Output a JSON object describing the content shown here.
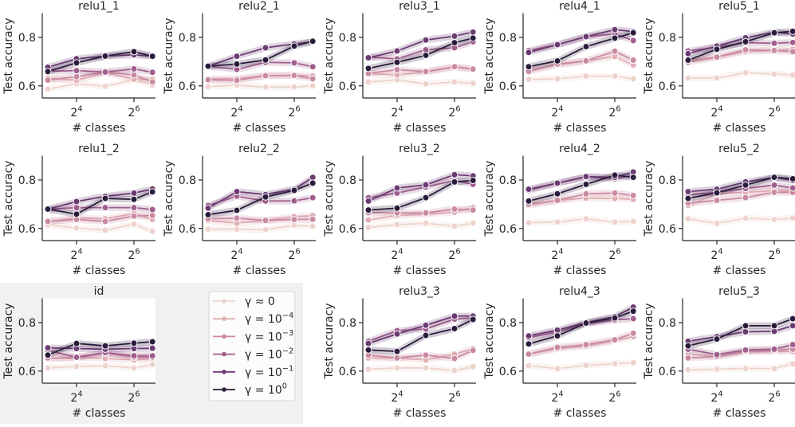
{
  "chart_data": {
    "type": "line",
    "x": [
      8,
      16,
      32,
      64,
      100
    ],
    "xscale": "log2",
    "xticks": [
      {
        "value": 16,
        "base": "2",
        "exp": "4"
      },
      {
        "value": 64,
        "base": "2",
        "exp": "6"
      }
    ],
    "yticks": [
      0.6,
      0.8
    ],
    "ylim": [
      0.55,
      0.9
    ],
    "xlabel": "# classes",
    "ylabel": "Test accuracy",
    "grid": false,
    "legend": {
      "placement": "bottom-left",
      "entries": [
        {
          "base": "γ ≈ 0",
          "exp": "",
          "color": "#eed3cc"
        },
        {
          "base": "γ = 10",
          "exp": "−4",
          "color": "#e0aeb3"
        },
        {
          "base": "γ = 10",
          "exp": "−3",
          "color": "#c98aa1"
        },
        {
          "base": "γ = 10",
          "exp": "−2",
          "color": "#9f5e8d"
        },
        {
          "base": "γ = 10",
          "exp": "−1",
          "color": "#6b3b72"
        },
        {
          "base": "γ = 10",
          "exp": "0",
          "color": "#2b1b3c"
        }
      ]
    },
    "panels": [
      {
        "title": "relu1_1",
        "series": [
          [
            0.587,
            0.609,
            0.598,
            0.625,
            0.603
          ],
          [
            0.632,
            0.623,
            0.655,
            0.627,
            0.627
          ],
          [
            0.624,
            0.638,
            0.657,
            0.645,
            0.616
          ],
          [
            0.66,
            0.663,
            0.657,
            0.67,
            0.656
          ],
          [
            0.677,
            0.712,
            0.723,
            0.728,
            0.722
          ],
          [
            0.659,
            0.695,
            0.723,
            0.741,
            0.722
          ]
        ]
      },
      {
        "title": "relu2_1",
        "series": [
          [
            0.597,
            0.603,
            0.595,
            0.595,
            0.6
          ],
          [
            0.629,
            0.63,
            0.642,
            0.643,
            0.641
          ],
          [
            0.625,
            0.623,
            0.642,
            0.643,
            0.629
          ],
          [
            0.681,
            0.668,
            0.697,
            0.695,
            0.679
          ],
          [
            0.681,
            0.722,
            0.757,
            0.773,
            0.782
          ],
          [
            0.681,
            0.69,
            0.707,
            0.764,
            0.784
          ]
        ]
      },
      {
        "title": "relu3_1",
        "series": [
          [
            0.616,
            0.625,
            0.608,
            0.616,
            0.611
          ],
          [
            0.651,
            0.645,
            0.657,
            0.678,
            0.669
          ],
          [
            0.651,
            0.667,
            0.659,
            0.679,
            0.669
          ],
          [
            0.719,
            0.711,
            0.749,
            0.757,
            0.782
          ],
          [
            0.716,
            0.744,
            0.789,
            0.805,
            0.822
          ],
          [
            0.672,
            0.697,
            0.726,
            0.778,
            0.797
          ]
        ]
      },
      {
        "title": "relu4_1",
        "series": [
          [
            0.627,
            0.629,
            0.64,
            0.64,
            0.629
          ],
          [
            0.665,
            0.686,
            0.703,
            0.721,
            0.686
          ],
          [
            0.659,
            0.69,
            0.703,
            0.743,
            0.706
          ],
          [
            0.746,
            0.77,
            0.803,
            0.814,
            0.787
          ],
          [
            0.738,
            0.77,
            0.803,
            0.832,
            0.824
          ],
          [
            0.679,
            0.703,
            0.762,
            0.797,
            0.819
          ]
        ]
      },
      {
        "title": "relu5_1",
        "series": [
          [
            0.632,
            0.632,
            0.654,
            0.649,
            0.645
          ],
          [
            0.706,
            0.719,
            0.741,
            0.746,
            0.751
          ],
          [
            0.697,
            0.719,
            0.749,
            0.746,
            0.741
          ],
          [
            0.744,
            0.76,
            0.778,
            0.776,
            0.779
          ],
          [
            0.733,
            0.764,
            0.798,
            0.822,
            0.814
          ],
          [
            0.706,
            0.751,
            0.782,
            0.819,
            0.825
          ]
        ]
      },
      {
        "title": "relu1_2",
        "series": [
          [
            0.615,
            0.602,
            0.593,
            0.618,
            0.588
          ],
          [
            0.629,
            0.643,
            0.64,
            0.662,
            0.637
          ],
          [
            0.629,
            0.637,
            0.629,
            0.651,
            0.654
          ],
          [
            0.68,
            0.686,
            0.686,
            0.686,
            0.678
          ],
          [
            0.68,
            0.711,
            0.733,
            0.746,
            0.763
          ],
          [
            0.68,
            0.659,
            0.724,
            0.72,
            0.751
          ]
        ]
      },
      {
        "title": "relu2_2",
        "series": [
          [
            0.597,
            0.597,
            0.595,
            0.613,
            0.609
          ],
          [
            0.633,
            0.622,
            0.633,
            0.649,
            0.653
          ],
          [
            0.64,
            0.643,
            0.633,
            0.637,
            0.638
          ],
          [
            0.695,
            0.733,
            0.713,
            0.714,
            0.727
          ],
          [
            0.684,
            0.752,
            0.74,
            0.762,
            0.811
          ],
          [
            0.657,
            0.675,
            0.73,
            0.757,
            0.787
          ]
        ]
      },
      {
        "title": "relu3_2",
        "series": [
          [
            0.604,
            0.616,
            0.621,
            0.61,
            0.622
          ],
          [
            0.635,
            0.654,
            0.659,
            0.667,
            0.687
          ],
          [
            0.665,
            0.664,
            0.664,
            0.68,
            0.676
          ],
          [
            0.727,
            0.746,
            0.771,
            0.798,
            0.782
          ],
          [
            0.713,
            0.767,
            0.78,
            0.822,
            0.817
          ],
          [
            0.676,
            0.684,
            0.727,
            0.792,
            0.798
          ]
        ]
      },
      {
        "title": "relu4_2",
        "series": [
          [
            0.624,
            0.626,
            0.64,
            0.626,
            0.629
          ],
          [
            0.695,
            0.716,
            0.725,
            0.724,
            0.72
          ],
          [
            0.7,
            0.716,
            0.743,
            0.746,
            0.736
          ],
          [
            0.757,
            0.787,
            0.812,
            0.805,
            0.82
          ],
          [
            0.762,
            0.787,
            0.814,
            0.811,
            0.833
          ],
          [
            0.713,
            0.743,
            0.782,
            0.82,
            0.811
          ]
        ]
      },
      {
        "title": "relu5_2",
        "series": [
          [
            0.64,
            0.621,
            0.642,
            0.637,
            0.643
          ],
          [
            0.695,
            0.743,
            0.749,
            0.757,
            0.754
          ],
          [
            0.705,
            0.716,
            0.727,
            0.749,
            0.749
          ],
          [
            0.738,
            0.749,
            0.765,
            0.779,
            0.767
          ],
          [
            0.752,
            0.762,
            0.792,
            0.811,
            0.798
          ],
          [
            0.724,
            0.747,
            0.779,
            0.811,
            0.805
          ]
        ]
      },
      {
        "title": "id",
        "series": [
          [
            0.613,
            0.619,
            0.622,
            0.613,
            0.627
          ],
          [
            0.652,
            0.657,
            0.652,
            0.646,
            0.652
          ],
          [
            0.654,
            0.654,
            0.674,
            0.657,
            0.657
          ],
          [
            0.685,
            0.657,
            0.676,
            0.663,
            0.663
          ],
          [
            0.696,
            0.693,
            0.69,
            0.693,
            0.694
          ],
          [
            0.666,
            0.714,
            0.704,
            0.715,
            0.721
          ]
        ]
      },
      {
        "title": "relu3_3",
        "series": [
          [
            0.608,
            0.613,
            0.613,
            0.602,
            0.618
          ],
          [
            0.654,
            0.654,
            0.646,
            0.67,
            0.693
          ],
          [
            0.666,
            0.654,
            0.666,
            0.652,
            0.685
          ],
          [
            0.723,
            0.767,
            0.773,
            0.814,
            0.82
          ],
          [
            0.714,
            0.753,
            0.789,
            0.827,
            0.827
          ],
          [
            0.687,
            0.681,
            0.747,
            0.775,
            0.813
          ]
        ]
      },
      {
        "title": "relu4_3",
        "series": [
          [
            0.622,
            0.61,
            0.624,
            0.63,
            0.635
          ],
          [
            0.67,
            0.692,
            0.703,
            0.725,
            0.742
          ],
          [
            0.67,
            0.698,
            0.709,
            0.729,
            0.756
          ],
          [
            0.738,
            0.762,
            0.795,
            0.811,
            0.816
          ],
          [
            0.745,
            0.769,
            0.8,
            0.825,
            0.864
          ],
          [
            0.712,
            0.745,
            0.798,
            0.819,
            0.847
          ]
        ]
      },
      {
        "title": "relu5_3",
        "series": [
          [
            0.605,
            0.608,
            0.611,
            0.61,
            0.63
          ],
          [
            0.67,
            0.659,
            0.679,
            0.681,
            0.681
          ],
          [
            0.654,
            0.66,
            0.682,
            0.685,
            0.69
          ],
          [
            0.69,
            0.668,
            0.687,
            0.69,
            0.709
          ],
          [
            0.723,
            0.742,
            0.762,
            0.764,
            0.787
          ],
          [
            0.704,
            0.732,
            0.787,
            0.787,
            0.816
          ]
        ]
      }
    ]
  }
}
